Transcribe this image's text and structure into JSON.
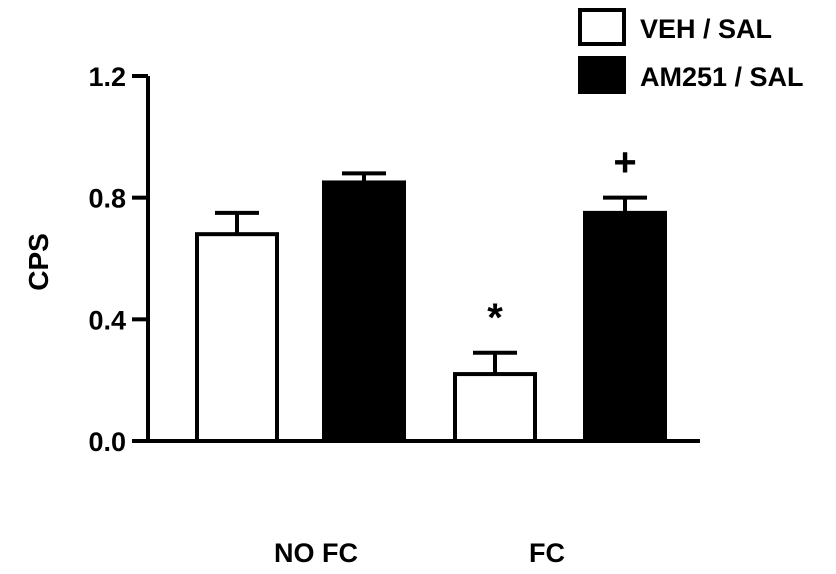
{
  "chart_data": {
    "type": "bar",
    "categories": [
      "NO FC",
      "FC"
    ],
    "series": [
      {
        "name": "VEH / SAL",
        "values": [
          0.68,
          0.22
        ],
        "errors": [
          0.07,
          0.07
        ],
        "fill": "#ffffff",
        "stroke": "#000000"
      },
      {
        "name": "AM251 / SAL",
        "values": [
          0.85,
          0.75
        ],
        "errors": [
          0.03,
          0.05
        ],
        "fill": "#000000",
        "stroke": "#000000"
      }
    ],
    "title": "",
    "xlabel": "",
    "ylabel": "CPS",
    "ylim": [
      0,
      1.2
    ],
    "yticks": [
      "0.0",
      "0.4",
      "0.8",
      "1.2"
    ],
    "grid": false,
    "legend_position": "top-right",
    "annotations": [
      {
        "text": "*",
        "category": 1,
        "series": 0
      },
      {
        "text": "+",
        "category": 1,
        "series": 1
      }
    ]
  }
}
